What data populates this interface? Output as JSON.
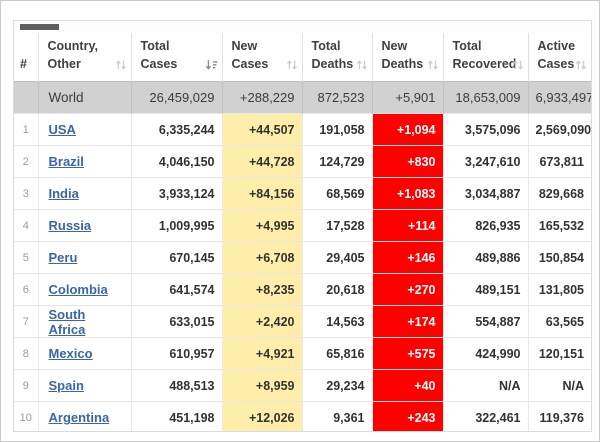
{
  "colors": {
    "new_cases_highlight": "#ffeeaa",
    "new_deaths_highlight": "#ff0000",
    "world_row_background": "#d1d1d1",
    "country_link": "#3a66a7"
  },
  "scrollbar": {
    "orientation": "horizontal",
    "thumb_position": "left"
  },
  "table": {
    "headers": [
      {
        "id": "rank",
        "label": "#",
        "label_lines": [
          "#"
        ],
        "sortable": false,
        "sort": null
      },
      {
        "id": "country",
        "label": "Country, Other",
        "label_lines": [
          "Country,",
          "Other"
        ],
        "sortable": true,
        "sort": "both"
      },
      {
        "id": "total_cases",
        "label": "Total Cases",
        "label_lines": [
          "Total",
          "Cases"
        ],
        "sortable": true,
        "sort": "desc"
      },
      {
        "id": "new_cases",
        "label": "New Cases",
        "label_lines": [
          "New",
          "Cases"
        ],
        "sortable": true,
        "sort": "both"
      },
      {
        "id": "total_deaths",
        "label": "Total Deaths",
        "label_lines": [
          "Total",
          "Deaths"
        ],
        "sortable": true,
        "sort": "both"
      },
      {
        "id": "new_deaths",
        "label": "New Deaths",
        "label_lines": [
          "New",
          "Deaths"
        ],
        "sortable": true,
        "sort": "both"
      },
      {
        "id": "total_recovered",
        "label": "Total Recovered",
        "label_lines": [
          "Total",
          "Recovered"
        ],
        "sortable": true,
        "sort": "both"
      },
      {
        "id": "active_cases",
        "label": "Active Cases",
        "label_lines": [
          "Active",
          "Cases"
        ],
        "sortable": true,
        "sort": "both"
      }
    ],
    "world_row": {
      "rank": "",
      "country": "World",
      "total_cases": "26,459,029",
      "new_cases": "+288,229",
      "total_deaths": "872,523",
      "new_deaths": "+5,901",
      "total_recovered": "18,653,009",
      "active_cases": "6,933,497"
    },
    "rows": [
      {
        "rank": "1",
        "country": "USA",
        "total_cases": "6,335,244",
        "new_cases": "+44,507",
        "total_deaths": "191,058",
        "new_deaths": "+1,094",
        "total_recovered": "3,575,096",
        "active_cases": "2,569,090"
      },
      {
        "rank": "2",
        "country": "Brazil",
        "total_cases": "4,046,150",
        "new_cases": "+44,728",
        "total_deaths": "124,729",
        "new_deaths": "+830",
        "total_recovered": "3,247,610",
        "active_cases": "673,811"
      },
      {
        "rank": "3",
        "country": "India",
        "total_cases": "3,933,124",
        "new_cases": "+84,156",
        "total_deaths": "68,569",
        "new_deaths": "+1,083",
        "total_recovered": "3,034,887",
        "active_cases": "829,668"
      },
      {
        "rank": "4",
        "country": "Russia",
        "total_cases": "1,009,995",
        "new_cases": "+4,995",
        "total_deaths": "17,528",
        "new_deaths": "+114",
        "total_recovered": "826,935",
        "active_cases": "165,532"
      },
      {
        "rank": "5",
        "country": "Peru",
        "total_cases": "670,145",
        "new_cases": "+6,708",
        "total_deaths": "29,405",
        "new_deaths": "+146",
        "total_recovered": "489,886",
        "active_cases": "150,854"
      },
      {
        "rank": "6",
        "country": "Colombia",
        "total_cases": "641,574",
        "new_cases": "+8,235",
        "total_deaths": "20,618",
        "new_deaths": "+270",
        "total_recovered": "489,151",
        "active_cases": "131,805"
      },
      {
        "rank": "7",
        "country": "South Africa",
        "total_cases": "633,015",
        "new_cases": "+2,420",
        "total_deaths": "14,563",
        "new_deaths": "+174",
        "total_recovered": "554,887",
        "active_cases": "63,565"
      },
      {
        "rank": "8",
        "country": "Mexico",
        "total_cases": "610,957",
        "new_cases": "+4,921",
        "total_deaths": "65,816",
        "new_deaths": "+575",
        "total_recovered": "424,990",
        "active_cases": "120,151"
      },
      {
        "rank": "9",
        "country": "Spain",
        "total_cases": "488,513",
        "new_cases": "+8,959",
        "total_deaths": "29,234",
        "new_deaths": "+40",
        "total_recovered": "N/A",
        "active_cases": "N/A"
      },
      {
        "rank": "10",
        "country": "Argentina",
        "total_cases": "451,198",
        "new_cases": "+12,026",
        "total_deaths": "9,361",
        "new_deaths": "+243",
        "total_recovered": "322,461",
        "active_cases": "119,376"
      }
    ]
  }
}
